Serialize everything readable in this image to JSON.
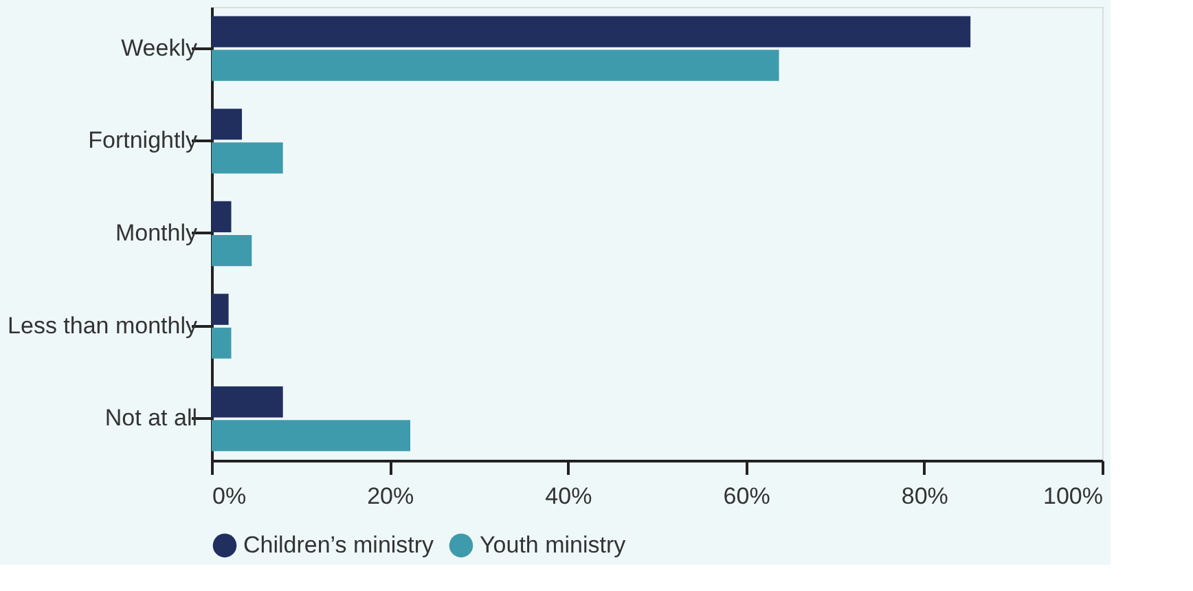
{
  "chart_data": {
    "type": "bar",
    "orientation": "horizontal",
    "categories": [
      "Weekly",
      "Fortnightly",
      "Monthly",
      "Less than monthly",
      "Not at all"
    ],
    "series": [
      {
        "name": "Children’s ministry",
        "color": "#212f5f",
        "values": [
          85.2,
          3.4,
          2.2,
          1.9,
          8.0
        ]
      },
      {
        "name": "Youth ministry",
        "color": "#3e9bac",
        "values": [
          63.7,
          8.0,
          4.5,
          2.2,
          22.3
        ]
      }
    ],
    "xlim": [
      0,
      100
    ],
    "xticks": [
      {
        "value": 0,
        "label": "0%"
      },
      {
        "value": 20,
        "label": "20%"
      },
      {
        "value": 40,
        "label": "40%"
      },
      {
        "value": 60,
        "label": "60%"
      },
      {
        "value": 80,
        "label": "80%"
      },
      {
        "value": 100,
        "label": "100%"
      }
    ],
    "grid": false,
    "legend": "bottom"
  }
}
